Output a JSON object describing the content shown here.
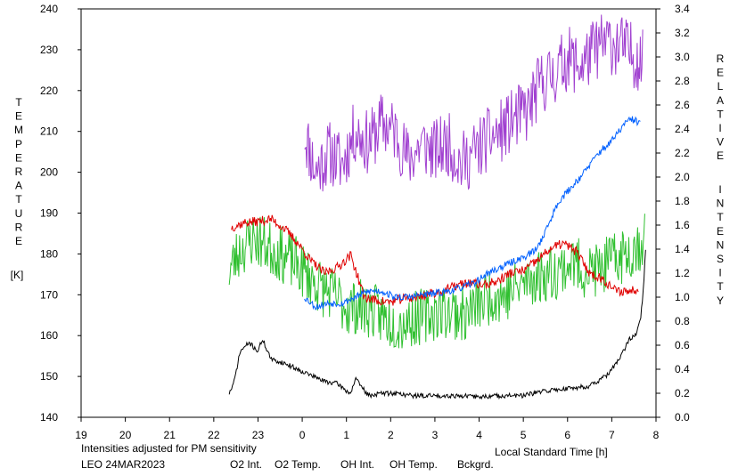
{
  "chart_data": {
    "type": "line",
    "x_label": "Local Standard Time [h]",
    "x_ticks": [
      "19",
      "20",
      "21",
      "22",
      "23",
      "0",
      "1",
      "2",
      "3",
      "4",
      "5",
      "6",
      "7",
      "8"
    ],
    "x_range_hours": [
      19,
      32
    ],
    "y_left": {
      "label_letters": [
        "T",
        "E",
        "M",
        "P",
        "E",
        "R",
        "A",
        "T",
        "U",
        "R",
        "E"
      ],
      "unit": "[K]",
      "range": [
        140,
        240
      ],
      "ticks": [
        "140",
        "150",
        "160",
        "170",
        "180",
        "190",
        "200",
        "210",
        "220",
        "230",
        "240"
      ]
    },
    "y_right": {
      "label_word1": [
        "R",
        "E",
        "L",
        "A",
        "T",
        "I",
        "V",
        "E"
      ],
      "label_word2": [
        "I",
        "N",
        "T",
        "E",
        "N",
        "S",
        "I",
        "T",
        "Y"
      ],
      "range": [
        0.0,
        3.4
      ],
      "ticks": [
        "0.0",
        "0.2",
        "0.4",
        "0.6",
        "0.8",
        "1.0",
        "1.2",
        "1.4",
        "1.6",
        "1.8",
        "2.0",
        "2.2",
        "2.4",
        "2.6",
        "2.8",
        "3.0",
        "3.2",
        "3.4"
      ]
    },
    "note": "Intensities adjusted for PM sensitivity",
    "station": "LEO 24MAR2023",
    "colors": {
      "o2_int": "#0060ff",
      "o2_temp": "#a040d0",
      "oh_int": "#e00000",
      "oh_temp": "#30c030",
      "bckgrd": "#000000",
      "note": "#20c020"
    },
    "series": [
      {
        "name": "O2 Temp.",
        "axis": "left",
        "color": "#a040d0",
        "x": [
          24.05,
          24.3,
          24.6,
          24.9,
          25.2,
          25.5,
          25.8,
          26.1,
          26.4,
          26.7,
          27.0,
          27.3,
          27.6,
          27.9,
          28.2,
          28.5,
          28.8,
          29.1,
          29.4,
          29.7,
          30.0,
          30.3,
          30.6,
          30.9,
          31.2,
          31.45,
          31.7
        ],
        "y": [
          210,
          200,
          205,
          202,
          210,
          207,
          212,
          210,
          203,
          207,
          205,
          207,
          202,
          205,
          208,
          210,
          213,
          215,
          222,
          224,
          228,
          226,
          230,
          232,
          231,
          229,
          227
        ],
        "jitter": 8,
        "seed": 11
      },
      {
        "name": "OH Temp.",
        "axis": "left",
        "color": "#30c030",
        "x": [
          22.35,
          22.6,
          22.9,
          23.2,
          23.5,
          23.8,
          24.1,
          24.4,
          24.7,
          25.0,
          25.3,
          25.6,
          25.9,
          26.2,
          26.5,
          26.8,
          27.1,
          27.4,
          27.7,
          28.0,
          28.3,
          28.6,
          28.9,
          29.2,
          29.5,
          29.8,
          30.1,
          30.4,
          30.7,
          31.0,
          31.3,
          31.6,
          31.75
        ],
        "y": [
          176,
          181,
          184,
          182,
          180,
          178,
          175,
          172,
          170,
          167,
          167,
          166,
          164,
          163,
          164,
          165,
          166,
          166,
          165,
          168,
          170,
          170,
          172,
          174,
          175,
          176,
          178,
          176,
          176,
          178,
          180,
          182,
          184
        ],
        "jitter": 7,
        "seed": 23
      },
      {
        "name": "OH Int.",
        "axis": "right",
        "color": "#e00000",
        "x": [
          22.4,
          22.7,
          23.0,
          23.3,
          23.6,
          23.9,
          24.2,
          24.5,
          24.8,
          25.1,
          25.4,
          25.7,
          26.0,
          26.3,
          26.6,
          26.9,
          27.2,
          27.5,
          27.8,
          28.1,
          28.4,
          28.7,
          29.0,
          29.3,
          29.6,
          29.9,
          30.2,
          30.5,
          30.8,
          31.1,
          31.4,
          31.6
        ],
        "y": [
          1.58,
          1.62,
          1.63,
          1.65,
          1.57,
          1.45,
          1.3,
          1.2,
          1.25,
          1.35,
          1.0,
          0.97,
          0.96,
          0.99,
          1.0,
          1.03,
          1.05,
          1.1,
          1.12,
          1.1,
          1.13,
          1.2,
          1.22,
          1.3,
          1.4,
          1.45,
          1.38,
          1.2,
          1.15,
          1.05,
          1.05,
          1.07
        ],
        "jitter": 0.04,
        "seed": 37
      },
      {
        "name": "O2 Int.",
        "axis": "right",
        "color": "#0060ff",
        "x": [
          24.05,
          24.3,
          24.6,
          24.9,
          25.2,
          25.5,
          25.8,
          26.1,
          26.4,
          26.7,
          27.0,
          27.3,
          27.6,
          27.9,
          28.2,
          28.5,
          28.8,
          29.1,
          29.3,
          29.5,
          29.8,
          30.1,
          30.4,
          30.7,
          31.0,
          31.3,
          31.45,
          31.65
        ],
        "y": [
          1.0,
          0.92,
          0.95,
          0.95,
          1.0,
          1.05,
          1.05,
          1.0,
          1.0,
          1.02,
          1.03,
          1.05,
          1.08,
          1.12,
          1.2,
          1.25,
          1.3,
          1.35,
          1.4,
          1.55,
          1.8,
          1.92,
          2.05,
          2.2,
          2.3,
          2.45,
          2.48,
          2.45
        ],
        "jitter": 0.03,
        "seed": 53
      },
      {
        "name": "Bckgrd.",
        "axis": "right",
        "color": "#000000",
        "x": [
          22.35,
          22.45,
          22.6,
          22.8,
          23.0,
          23.1,
          23.3,
          23.6,
          23.9,
          24.2,
          24.5,
          24.8,
          25.0,
          25.1,
          25.2,
          25.5,
          25.8,
          26.1,
          26.5,
          27.0,
          27.5,
          28.0,
          28.5,
          29.0,
          29.5,
          30.0,
          30.5,
          30.9,
          31.2,
          31.4,
          31.55,
          31.65,
          31.72,
          31.78
        ],
        "y": [
          0.2,
          0.28,
          0.55,
          0.62,
          0.55,
          0.65,
          0.48,
          0.45,
          0.4,
          0.35,
          0.3,
          0.28,
          0.22,
          0.2,
          0.32,
          0.18,
          0.2,
          0.2,
          0.18,
          0.18,
          0.18,
          0.17,
          0.18,
          0.18,
          0.22,
          0.24,
          0.26,
          0.35,
          0.5,
          0.65,
          0.7,
          0.8,
          1.1,
          1.5
        ],
        "jitter": 0.02,
        "seed": 71
      }
    ]
  },
  "legend": {
    "items": [
      {
        "label": "O2 Int.",
        "color": "#0060ff"
      },
      {
        "label": "O2 Temp.",
        "color": "#a040d0"
      },
      {
        "label": "OH Int.",
        "color": "#e00000"
      },
      {
        "label": "OH Temp.",
        "color": "#30c030"
      },
      {
        "label": "Bckgrd.",
        "color": "#000000"
      }
    ]
  }
}
